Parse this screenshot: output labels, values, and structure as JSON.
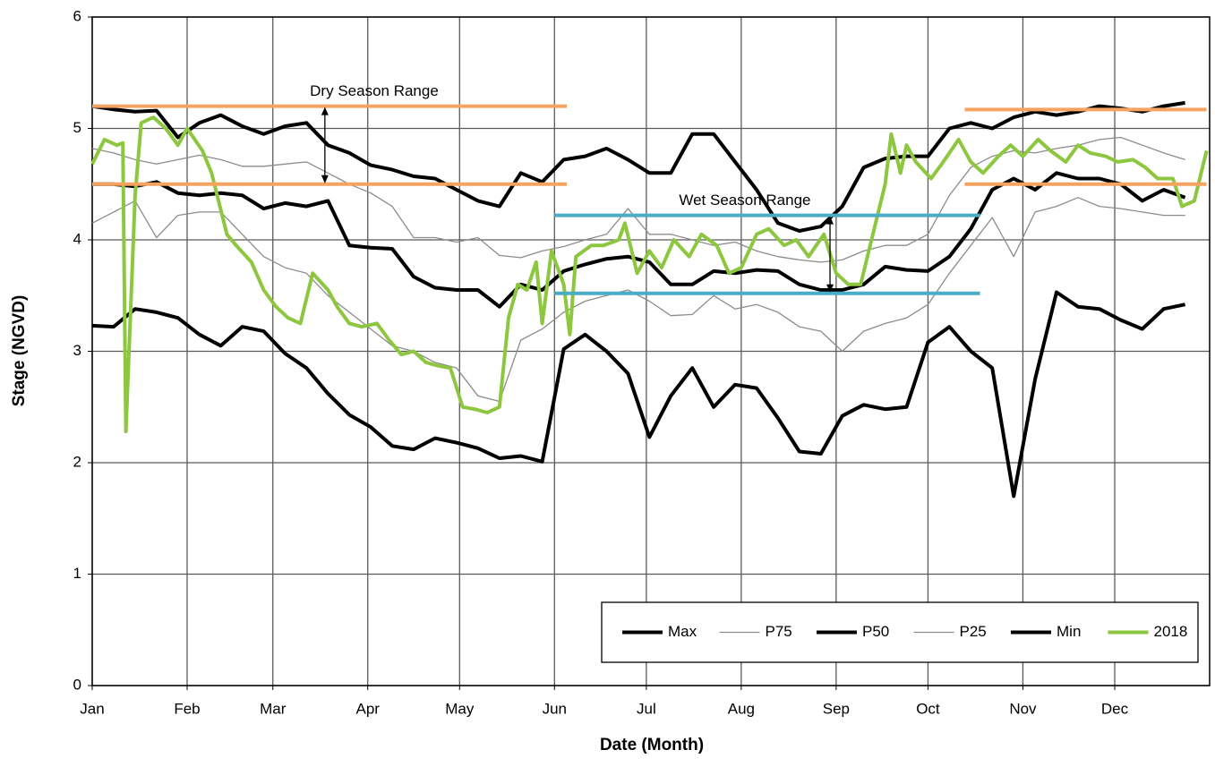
{
  "chart_data": {
    "type": "line",
    "xlabel": "Date (Month)",
    "ylabel": "Stage (NGVD)",
    "xlim": [
      1,
      366
    ],
    "ylim": [
      0,
      6
    ],
    "yticks": [
      0,
      1,
      2,
      3,
      4,
      5,
      6
    ],
    "xticks": [
      {
        "value": 1,
        "label": "Jan"
      },
      {
        "value": 32,
        "label": "Feb"
      },
      {
        "value": 60,
        "label": "Mar"
      },
      {
        "value": 91,
        "label": "Apr"
      },
      {
        "value": 121,
        "label": "May"
      },
      {
        "value": 152,
        "label": "Jun"
      },
      {
        "value": 182,
        "label": "Jul"
      },
      {
        "value": 213,
        "label": "Aug"
      },
      {
        "value": 244,
        "label": "Sep"
      },
      {
        "value": 274,
        "label": "Oct"
      },
      {
        "value": 305,
        "label": "Nov"
      },
      {
        "value": 335,
        "label": "Dec"
      }
    ],
    "grid": true,
    "legend": "lower right",
    "x": [
      1,
      8,
      15,
      22,
      29,
      36,
      43,
      50,
      57,
      64,
      71,
      78,
      85,
      92,
      99,
      106,
      113,
      120,
      127,
      134,
      141,
      148,
      155,
      162,
      169,
      176,
      183,
      190,
      197,
      204,
      211,
      218,
      225,
      232,
      239,
      246,
      253,
      260,
      267,
      274,
      281,
      288,
      295,
      302,
      309,
      316,
      323,
      330,
      337,
      344,
      351,
      358
    ],
    "series": [
      {
        "name": "Max",
        "color": "#000000",
        "line_width": 4,
        "values": [
          5.2,
          5.17,
          5.15,
          5.16,
          4.92,
          5.05,
          5.12,
          5.02,
          4.95,
          5.02,
          5.05,
          4.85,
          4.78,
          4.67,
          4.63,
          4.57,
          4.55,
          4.45,
          4.35,
          4.3,
          4.6,
          4.52,
          4.72,
          4.75,
          4.82,
          4.72,
          4.6,
          4.6,
          4.95,
          4.95,
          4.7,
          4.45,
          4.15,
          4.08,
          4.12,
          4.3,
          4.65,
          4.73,
          4.75,
          4.75,
          5.0,
          5.05,
          5.0,
          5.1,
          5.15,
          5.12,
          5.15,
          5.2,
          5.18,
          5.15,
          5.2,
          5.23
        ]
      },
      {
        "name": "P75",
        "color": "#8c8c8c",
        "line_width": 1.3,
        "values": [
          4.82,
          4.78,
          4.72,
          4.68,
          4.72,
          4.76,
          4.72,
          4.66,
          4.66,
          4.68,
          4.7,
          4.6,
          4.5,
          4.42,
          4.3,
          4.02,
          4.02,
          3.98,
          4.02,
          3.86,
          3.84,
          3.9,
          3.94,
          4.0,
          4.05,
          4.28,
          4.05,
          4.05,
          4.0,
          3.95,
          3.98,
          3.9,
          3.85,
          3.82,
          3.8,
          3.82,
          3.9,
          3.95,
          3.95,
          4.05,
          4.4,
          4.65,
          4.75,
          4.8,
          4.78,
          4.82,
          4.85,
          4.9,
          4.92,
          4.85,
          4.78,
          4.72
        ]
      },
      {
        "name": "P50",
        "color": "#000000",
        "line_width": 4,
        "values": [
          4.5,
          4.5,
          4.48,
          4.52,
          4.42,
          4.4,
          4.42,
          4.4,
          4.28,
          4.33,
          4.3,
          4.35,
          3.95,
          3.93,
          3.92,
          3.67,
          3.57,
          3.55,
          3.55,
          3.4,
          3.6,
          3.55,
          3.72,
          3.78,
          3.83,
          3.85,
          3.8,
          3.6,
          3.6,
          3.72,
          3.7,
          3.73,
          3.72,
          3.6,
          3.55,
          3.55,
          3.6,
          3.76,
          3.73,
          3.72,
          3.85,
          4.1,
          4.45,
          4.55,
          4.45,
          4.6,
          4.55,
          4.55,
          4.5,
          4.35,
          4.45,
          4.38
        ]
      },
      {
        "name": "P25",
        "color": "#8c8c8c",
        "line_width": 1.3,
        "values": [
          4.15,
          4.25,
          4.35,
          4.02,
          4.22,
          4.25,
          4.25,
          4.05,
          3.85,
          3.75,
          3.7,
          3.5,
          3.35,
          3.2,
          3.05,
          3.0,
          2.9,
          2.85,
          2.6,
          2.55,
          3.1,
          3.2,
          3.35,
          3.45,
          3.5,
          3.55,
          3.45,
          3.32,
          3.33,
          3.5,
          3.38,
          3.42,
          3.35,
          3.22,
          3.18,
          3.0,
          3.18,
          3.25,
          3.3,
          3.42,
          3.7,
          3.95,
          4.2,
          3.85,
          4.25,
          4.3,
          4.38,
          4.3,
          4.28,
          4.25,
          4.22,
          4.22
        ]
      },
      {
        "name": "Min",
        "color": "#000000",
        "line_width": 4,
        "values": [
          3.23,
          3.22,
          3.38,
          3.35,
          3.3,
          3.15,
          3.05,
          3.22,
          3.18,
          2.98,
          2.85,
          2.62,
          2.43,
          2.32,
          2.15,
          2.12,
          2.22,
          2.18,
          2.13,
          2.04,
          2.06,
          2.01,
          3.02,
          3.15,
          3.0,
          2.8,
          2.23,
          2.6,
          2.85,
          2.5,
          2.7,
          2.67,
          2.4,
          2.1,
          2.08,
          2.42,
          2.52,
          2.48,
          2.5,
          3.08,
          3.22,
          3.0,
          2.85,
          1.7,
          2.75,
          3.53,
          3.4,
          3.38,
          3.28,
          3.2,
          3.38,
          3.42
        ]
      },
      {
        "name": "2018",
        "color": "#8dc63f",
        "line_width": 4,
        "x": [
          1,
          5,
          9,
          11,
          12,
          15,
          17,
          21,
          25,
          29,
          32,
          37,
          40,
          45,
          48,
          53,
          57,
          61,
          65,
          69,
          73,
          78,
          81,
          85,
          89,
          94,
          98,
          102,
          106,
          110,
          114,
          118,
          122,
          126,
          130,
          134,
          137,
          140,
          143,
          146,
          148,
          151,
          155,
          157,
          159,
          164,
          168,
          173,
          175,
          179,
          183,
          187,
          191,
          196,
          200,
          205,
          209,
          213,
          218,
          222,
          227,
          231,
          235,
          240,
          244,
          248,
          252,
          256,
          260,
          262,
          265,
          267,
          270,
          275,
          279,
          284,
          288,
          292,
          297,
          301,
          305,
          310,
          314,
          319,
          323,
          327,
          332,
          336,
          341,
          345,
          349,
          354,
          357,
          361,
          365
        ],
        "values": [
          4.68,
          4.9,
          4.85,
          4.87,
          2.28,
          4.4,
          5.05,
          5.1,
          5.0,
          4.85,
          5.0,
          4.8,
          4.6,
          4.05,
          3.95,
          3.8,
          3.55,
          3.4,
          3.3,
          3.25,
          3.7,
          3.55,
          3.4,
          3.25,
          3.22,
          3.25,
          3.1,
          2.97,
          3.0,
          2.9,
          2.87,
          2.85,
          2.5,
          2.48,
          2.45,
          2.5,
          3.3,
          3.6,
          3.55,
          3.8,
          3.25,
          3.9,
          3.6,
          3.15,
          3.85,
          3.95,
          3.95,
          4.0,
          4.15,
          3.7,
          3.9,
          3.75,
          4.0,
          3.85,
          4.05,
          3.95,
          3.7,
          3.75,
          4.05,
          4.1,
          3.95,
          4.0,
          3.85,
          4.05,
          3.7,
          3.6,
          3.6,
          4.05,
          4.5,
          4.95,
          4.6,
          4.85,
          4.7,
          4.55,
          4.7,
          4.9,
          4.7,
          4.6,
          4.75,
          4.85,
          4.75,
          4.9,
          4.8,
          4.7,
          4.85,
          4.78,
          4.75,
          4.7,
          4.72,
          4.65,
          4.55,
          4.55,
          4.3,
          4.35,
          4.8
        ]
      }
    ],
    "bands": [
      {
        "label": "Dry Season Range",
        "color": "#f4a460",
        "x": [
          1,
          156
        ],
        "low": 4.5,
        "high": 5.2,
        "arrow_x": 77
      },
      {
        "color": "#f4a460",
        "x": [
          286,
          365
        ],
        "low": 4.5,
        "high": 5.17
      },
      {
        "label": "Wet Season Range",
        "color": "#4bacc6",
        "x": [
          152,
          291
        ],
        "low": 3.52,
        "high": 4.22,
        "arrow_x": 242
      }
    ]
  }
}
